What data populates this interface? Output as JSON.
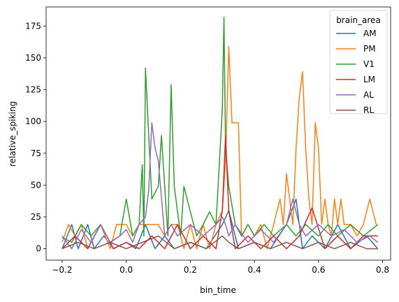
{
  "chart_data": {
    "type": "line",
    "xlabel": "bin_time",
    "ylabel": "relative_spiking",
    "xlim": [
      -0.25,
      0.825
    ],
    "ylim": [
      -9,
      190
    ],
    "xticks": [
      -0.2,
      0.0,
      0.2,
      0.4,
      0.6,
      0.8
    ],
    "xtick_labels": [
      "−0.2",
      "0.0",
      "0.2",
      "0.4",
      "0.6",
      "0.8"
    ],
    "yticks": [
      0,
      25,
      50,
      75,
      100,
      125,
      150,
      175
    ],
    "ytick_labels": [
      "0",
      "25",
      "50",
      "75",
      "100",
      "125",
      "150",
      "175"
    ],
    "grid": false,
    "legend": {
      "title": "brain_area",
      "placement": "top-right"
    },
    "series": [
      {
        "name": "AM",
        "color": "#1f77b4",
        "x": [
          -0.2,
          -0.17,
          -0.15,
          -0.12,
          -0.1,
          -0.07,
          -0.04,
          0.0,
          0.03,
          0.06,
          0.09,
          0.12,
          0.15,
          0.2,
          0.25,
          0.3,
          0.32,
          0.35,
          0.4,
          0.45,
          0.5,
          0.53,
          0.55,
          0.58,
          0.62,
          0.66,
          0.7,
          0.75,
          0.785
        ],
        "y": [
          0,
          19,
          0,
          19,
          0,
          10,
          0,
          5,
          0,
          19,
          0,
          10,
          0,
          5,
          0,
          19,
          30,
          0,
          5,
          0,
          19,
          39,
          0,
          10,
          0,
          19,
          0,
          10,
          0
        ]
      },
      {
        "name": "PM",
        "color": "#ff7f0e",
        "x": [
          -0.2,
          -0.18,
          -0.16,
          -0.14,
          -0.12,
          -0.1,
          -0.08,
          -0.05,
          -0.03,
          0.0,
          0.02,
          0.04,
          0.06,
          0.08,
          0.1,
          0.12,
          0.14,
          0.16,
          0.18,
          0.2,
          0.22,
          0.24,
          0.26,
          0.28,
          0.3,
          0.31,
          0.32,
          0.33,
          0.34,
          0.35,
          0.36,
          0.38,
          0.4,
          0.42,
          0.44,
          0.46,
          0.48,
          0.49,
          0.5,
          0.51,
          0.52,
          0.53,
          0.54,
          0.55,
          0.56,
          0.57,
          0.58,
          0.59,
          0.6,
          0.61,
          0.62,
          0.63,
          0.64,
          0.65,
          0.66,
          0.67,
          0.68,
          0.7,
          0.72,
          0.74,
          0.76,
          0.78
        ],
        "y": [
          5,
          19,
          10,
          19,
          0,
          10,
          19,
          0,
          19,
          19,
          10,
          19,
          19,
          19,
          19,
          10,
          19,
          19,
          0,
          19,
          0,
          19,
          0,
          19,
          30,
          69,
          159,
          99,
          99,
          99,
          10,
          19,
          10,
          19,
          0,
          19,
          39,
          19,
          59,
          39,
          19,
          79,
          119,
          139,
          79,
          39,
          19,
          99,
          79,
          19,
          39,
          19,
          10,
          39,
          19,
          39,
          19,
          19,
          10,
          19,
          39,
          19
        ]
      },
      {
        "name": "V1",
        "color": "#2ca02c",
        "x": [
          -0.2,
          -0.17,
          -0.14,
          -0.11,
          -0.08,
          -0.05,
          -0.02,
          0.0,
          0.02,
          0.04,
          0.05,
          0.055,
          0.06,
          0.08,
          0.1,
          0.11,
          0.12,
          0.13,
          0.14,
          0.145,
          0.15,
          0.17,
          0.18,
          0.2,
          0.22,
          0.24,
          0.26,
          0.28,
          0.3,
          0.305,
          0.31,
          0.32,
          0.34,
          0.36,
          0.38,
          0.4,
          0.43,
          0.46,
          0.5,
          0.53,
          0.56,
          0.6,
          0.63,
          0.66,
          0.7,
          0.74,
          0.785
        ],
        "y": [
          9,
          5,
          19,
          10,
          19,
          5,
          10,
          39,
          10,
          19,
          66,
          10,
          142,
          39,
          49,
          89,
          49,
          10,
          129,
          89,
          49,
          10,
          49,
          29,
          10,
          19,
          29,
          19,
          110,
          182,
          79,
          49,
          19,
          10,
          19,
          10,
          19,
          10,
          19,
          10,
          19,
          10,
          19,
          10,
          19,
          10,
          19
        ]
      },
      {
        "name": "LM",
        "color": "#d62728",
        "x": [
          -0.2,
          -0.16,
          -0.12,
          -0.08,
          -0.04,
          0.0,
          0.04,
          0.08,
          0.12,
          0.16,
          0.2,
          0.24,
          0.28,
          0.3,
          0.31,
          0.32,
          0.34,
          0.38,
          0.42,
          0.46,
          0.5,
          0.54,
          0.58,
          0.62,
          0.66,
          0.7,
          0.74,
          0.785
        ],
        "y": [
          0,
          10,
          0,
          19,
          0,
          5,
          0,
          10,
          0,
          19,
          0,
          10,
          0,
          30,
          89,
          30,
          0,
          10,
          0,
          10,
          0,
          10,
          32,
          0,
          10,
          0,
          10,
          10
        ]
      },
      {
        "name": "AL",
        "color": "#9467bd",
        "x": [
          -0.2,
          -0.17,
          -0.14,
          -0.11,
          -0.08,
          -0.05,
          -0.02,
          0.0,
          0.02,
          0.04,
          0.06,
          0.07,
          0.08,
          0.09,
          0.1,
          0.11,
          0.12,
          0.14,
          0.16,
          0.2,
          0.24,
          0.28,
          0.3,
          0.31,
          0.32,
          0.34,
          0.38,
          0.42,
          0.46,
          0.5,
          0.52,
          0.54,
          0.56,
          0.6,
          0.64,
          0.68,
          0.72,
          0.76,
          0.785
        ],
        "y": [
          10,
          0,
          15,
          5,
          19,
          5,
          10,
          15,
          5,
          19,
          25,
          46,
          99,
          79,
          69,
          40,
          10,
          19,
          10,
          19,
          10,
          19,
          25,
          19,
          10,
          19,
          5,
          15,
          5,
          19,
          39,
          19,
          10,
          19,
          10,
          15,
          5,
          10,
          5
        ]
      },
      {
        "name": "RL",
        "color": "#8c564b",
        "x": [
          -0.2,
          -0.15,
          -0.1,
          -0.05,
          0.0,
          0.05,
          0.1,
          0.15,
          0.2,
          0.25,
          0.3,
          0.32,
          0.35,
          0.4,
          0.45,
          0.5,
          0.55,
          0.6,
          0.65,
          0.7,
          0.75,
          0.785
        ],
        "y": [
          0,
          5,
          0,
          5,
          0,
          5,
          10,
          0,
          5,
          0,
          10,
          5,
          0,
          5,
          0,
          5,
          0,
          5,
          0,
          5,
          0,
          0
        ]
      }
    ]
  }
}
